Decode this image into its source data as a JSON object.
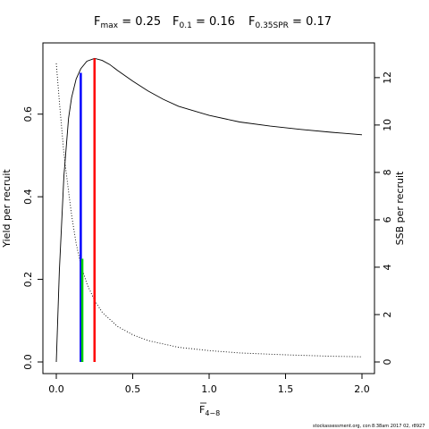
{
  "header": {
    "fmax": {
      "main": "F",
      "sub": "max",
      "eq": " = 0.25"
    },
    "f01": {
      "main": "F",
      "sub": "0.1",
      "eq": " = 0.16"
    },
    "fspr": {
      "main": "F",
      "sub": "0.35SPR",
      "eq": " = 0.17"
    }
  },
  "xaxis": {
    "main": "F",
    "sub": "4−8"
  },
  "footer": {
    "left": "stockassessment.org, con",
    "right": "8:38am  2017 02, r8927"
  },
  "chart_data": {
    "type": "line",
    "xlim": [
      0,
      2
    ],
    "ylim_left": [
      0,
      0.74
    ],
    "ylim_right": [
      0,
      12.9
    ],
    "x_ticks": [
      {
        "v": 0,
        "label": "0.0"
      },
      {
        "v": 0.5,
        "label": "0.5"
      },
      {
        "v": 1,
        "label": "1.0"
      },
      {
        "v": 1.5,
        "label": "1.5"
      },
      {
        "v": 2,
        "label": "2.0"
      }
    ],
    "y_left_ticks": [
      {
        "v": 0,
        "label": "0.0"
      },
      {
        "v": 0.2,
        "label": "0.2"
      },
      {
        "v": 0.4,
        "label": "0.4"
      },
      {
        "v": 0.6,
        "label": "0.6"
      }
    ],
    "y_right_ticks": [
      {
        "v": 0,
        "label": "0"
      },
      {
        "v": 2,
        "label": "2"
      },
      {
        "v": 4,
        "label": "4"
      },
      {
        "v": 6,
        "label": "6"
      },
      {
        "v": 8,
        "label": "8"
      },
      {
        "v": 10,
        "label": "10"
      },
      {
        "v": 12,
        "label": "12"
      }
    ],
    "ylabel_left": "Yield per recruit",
    "ylabel_right": "SSB per recruit",
    "series": [
      {
        "axis": "left",
        "style": "solid",
        "color": "#000000",
        "points": [
          [
            0,
            0
          ],
          [
            0.02,
            0.22
          ],
          [
            0.05,
            0.45
          ],
          [
            0.08,
            0.59
          ],
          [
            0.1,
            0.64
          ],
          [
            0.13,
            0.685
          ],
          [
            0.16,
            0.71
          ],
          [
            0.2,
            0.728
          ],
          [
            0.25,
            0.735
          ],
          [
            0.3,
            0.73
          ],
          [
            0.35,
            0.72
          ],
          [
            0.4,
            0.706
          ],
          [
            0.5,
            0.68
          ],
          [
            0.6,
            0.656
          ],
          [
            0.7,
            0.636
          ],
          [
            0.8,
            0.619
          ],
          [
            1.0,
            0.597
          ],
          [
            1.2,
            0.581
          ],
          [
            1.4,
            0.571
          ],
          [
            1.6,
            0.563
          ],
          [
            1.8,
            0.556
          ],
          [
            2.0,
            0.55
          ]
        ]
      },
      {
        "axis": "right",
        "style": "dotted",
        "color": "#000000",
        "points": [
          [
            0,
            12.6
          ],
          [
            0.02,
            11.0
          ],
          [
            0.05,
            8.8
          ],
          [
            0.08,
            7.2
          ],
          [
            0.1,
            6.2
          ],
          [
            0.13,
            5.0
          ],
          [
            0.16,
            4.1
          ],
          [
            0.2,
            3.3
          ],
          [
            0.25,
            2.6
          ],
          [
            0.3,
            2.1
          ],
          [
            0.4,
            1.5
          ],
          [
            0.5,
            1.15
          ],
          [
            0.6,
            0.9
          ],
          [
            0.8,
            0.62
          ],
          [
            1.0,
            0.48
          ],
          [
            1.2,
            0.38
          ],
          [
            1.5,
            0.3
          ],
          [
            1.8,
            0.24
          ],
          [
            2.0,
            0.22
          ]
        ]
      }
    ],
    "reference_lines": [
      {
        "x": 0.25,
        "color": "#ff0000",
        "axis": "left",
        "y_top": 0.735
      },
      {
        "x": 0.16,
        "color": "#0000ff",
        "axis": "left",
        "y_top": 0.7
      },
      {
        "x": 0.17,
        "color": "#00cc00",
        "axis": "left",
        "y_top": 0.25
      }
    ]
  }
}
